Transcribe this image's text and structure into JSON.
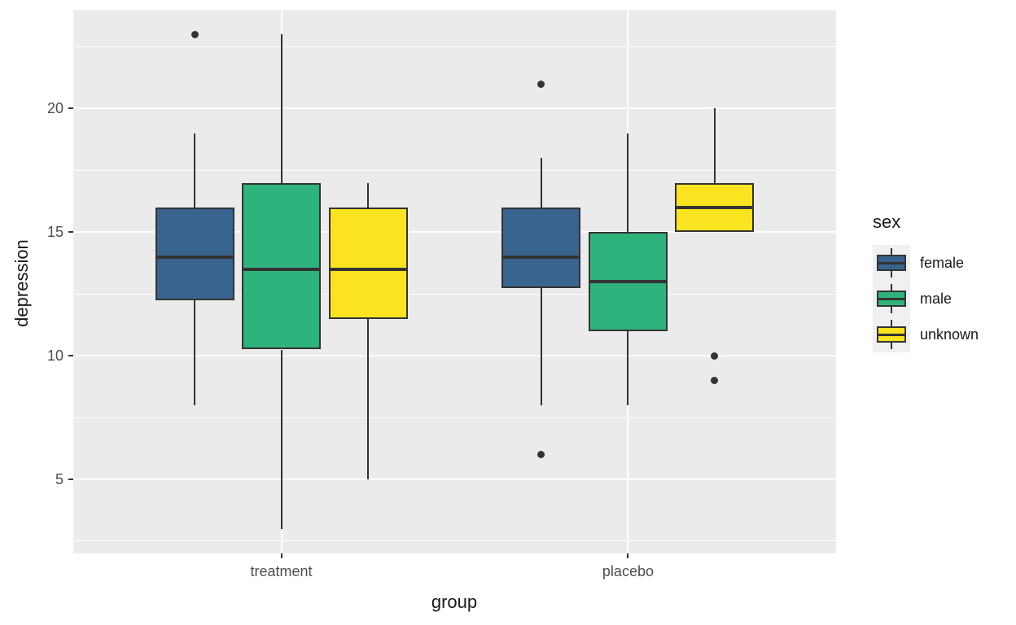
{
  "chart_data": {
    "type": "boxplot",
    "title": "",
    "xlabel": "group",
    "ylabel": "depression",
    "x_categories": [
      "treatment",
      "placebo"
    ],
    "y_ticks": [
      20,
      15,
      10,
      5
    ],
    "y_minor_ticks": [
      22.5,
      17.5,
      12.5,
      7.5,
      2.5
    ],
    "ylim": [
      2,
      24
    ],
    "grid": "major-and-minor, white on gray panel",
    "legend_position": "right",
    "legend": {
      "title": "sex",
      "entries": [
        {
          "label": "female",
          "color": "#38648F"
        },
        {
          "label": "male",
          "color": "#2EB37C"
        },
        {
          "label": "unknown",
          "color": "#FBE41F"
        }
      ]
    },
    "boxes": [
      {
        "group": "treatment",
        "sex": "female",
        "color": "#38648F",
        "whisker_low": 8,
        "q1": 12.25,
        "median": 14,
        "q3": 16,
        "whisker_high": 19,
        "outliers": [
          23
        ]
      },
      {
        "group": "treatment",
        "sex": "male",
        "color": "#2EB37C",
        "whisker_low": 3,
        "q1": 10.25,
        "median": 13.5,
        "q3": 17,
        "whisker_high": 23,
        "outliers": []
      },
      {
        "group": "treatment",
        "sex": "unknown",
        "color": "#FBE41F",
        "whisker_low": 5,
        "q1": 11.5,
        "median": 13.5,
        "q3": 16,
        "whisker_high": 17,
        "outliers": []
      },
      {
        "group": "placebo",
        "sex": "female",
        "color": "#38648F",
        "whisker_low": 8,
        "q1": 12.75,
        "median": 14,
        "q3": 16,
        "whisker_high": 18,
        "outliers": [
          21,
          6
        ]
      },
      {
        "group": "placebo",
        "sex": "male",
        "color": "#2EB37C",
        "whisker_low": 8,
        "q1": 11,
        "median": 13,
        "q3": 15,
        "whisker_high": 19,
        "outliers": []
      },
      {
        "group": "placebo",
        "sex": "unknown",
        "color": "#FBE41F",
        "whisker_low": 15,
        "q1": 15,
        "median": 16,
        "q3": 17,
        "whisker_high": 20,
        "outliers": [
          10,
          9
        ]
      }
    ],
    "colors": {
      "panel_bg": "#EBEBEB",
      "grid": "#FFFFFF",
      "stroke": "#333333",
      "tick_text": "#4D4D4D",
      "title_text": "#1A1A1A",
      "legend_key_bg": "#F0F0F0",
      "page_bg": "#FFFFFF"
    }
  }
}
